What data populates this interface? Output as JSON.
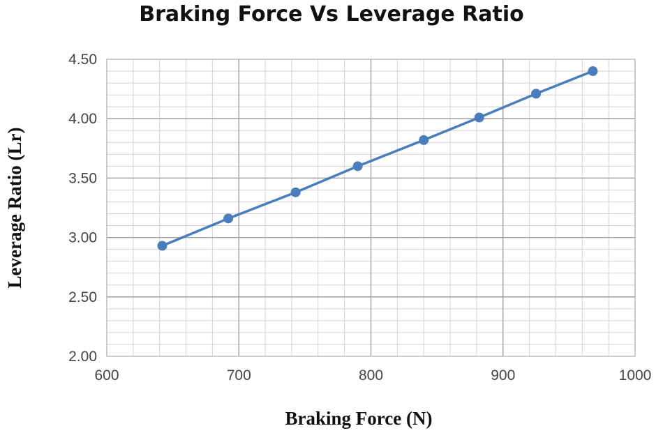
{
  "chart_data": {
    "type": "line",
    "title": "Braking Force Vs Leverage Ratio",
    "xlabel": "Braking Force (N)",
    "ylabel": "Leverage Ratio (Lr)",
    "xlim": [
      600,
      1000
    ],
    "ylim": [
      2.0,
      4.5
    ],
    "x_ticks": [
      600,
      700,
      800,
      900,
      1000
    ],
    "y_ticks": [
      2.0,
      2.5,
      3.0,
      3.5,
      4.0,
      4.5
    ],
    "x_tick_labels": [
      "600",
      "700",
      "800",
      "900",
      "1000"
    ],
    "y_tick_labels": [
      "2.00",
      "2.50",
      "3.00",
      "3.50",
      "4.00",
      "4.50"
    ],
    "x_minor_step": 20,
    "y_minor_step": 0.1,
    "grid": true,
    "legend": "none",
    "series": [
      {
        "name": "Leverage Ratio",
        "color": "#4a7ebb",
        "x": [
          642,
          692,
          743,
          790,
          840,
          882,
          925,
          968
        ],
        "y": [
          2.93,
          3.16,
          3.38,
          3.6,
          3.82,
          4.01,
          4.21,
          4.4
        ]
      }
    ]
  }
}
